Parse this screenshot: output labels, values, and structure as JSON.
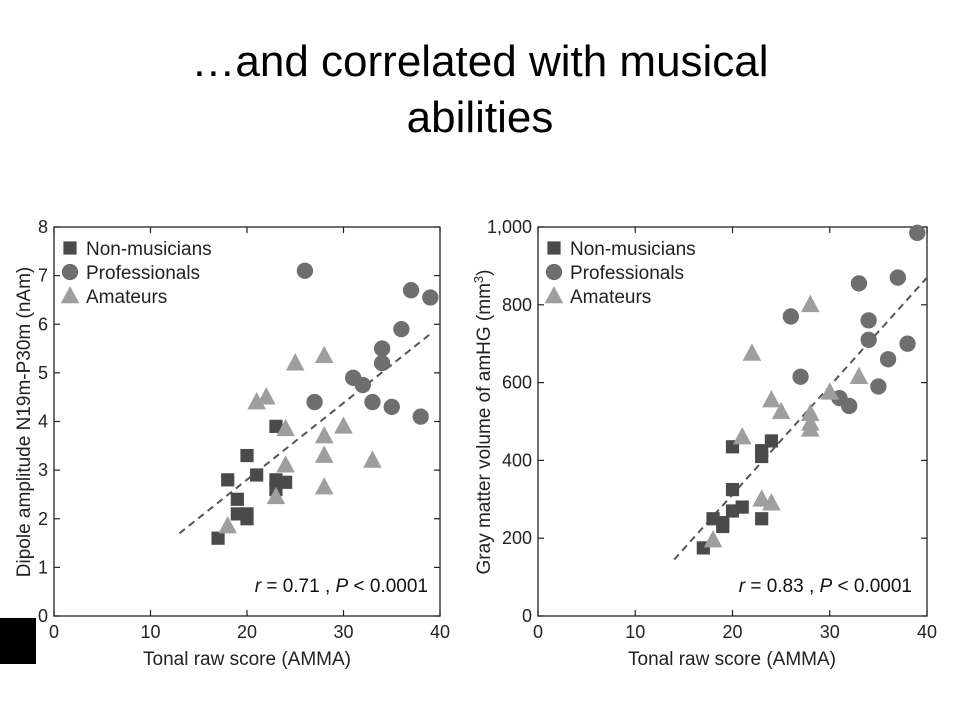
{
  "slide": {
    "title_line1": "…and correlated with musical",
    "title_line2": "abilities"
  },
  "colors": {
    "non_musicians": "#4a4a4a",
    "professionals": "#6e6e6e",
    "amateurs": "#9e9e9e",
    "trend": "#555555"
  },
  "chart_data": [
    {
      "type": "scatter",
      "xlabel": "Tonal raw score (AMMA)",
      "ylabel": "Dipole amplitude  N19m-P30m (nAm)",
      "xlim": [
        0,
        40
      ],
      "ylim": [
        0,
        8
      ],
      "xticks": [
        0,
        10,
        20,
        30,
        40
      ],
      "yticks": [
        0,
        1,
        2,
        3,
        4,
        5,
        6,
        7,
        8
      ],
      "ytick_labels": [
        "0",
        "1",
        "2",
        "3",
        "4",
        "5",
        "6",
        "7",
        "8"
      ],
      "legend_position": "top-left",
      "stat_r": "0.71",
      "stat_p": "0.0001",
      "trend": {
        "x": [
          13,
          39
        ],
        "y": [
          1.7,
          5.8
        ]
      },
      "series": [
        {
          "name": "Non-musicians",
          "marker": "square",
          "points": [
            [
              17,
              1.6
            ],
            [
              18,
              2.8
            ],
            [
              19,
              2.4
            ],
            [
              19,
              2.1
            ],
            [
              20,
              2.0
            ],
            [
              20,
              3.3
            ],
            [
              20,
              2.1
            ],
            [
              21,
              2.9
            ],
            [
              23,
              3.9
            ],
            [
              23,
              2.6
            ],
            [
              23,
              2.8
            ],
            [
              24,
              2.75
            ]
          ]
        },
        {
          "name": "Professionals",
          "marker": "circle",
          "points": [
            [
              26,
              7.1
            ],
            [
              27,
              4.4
            ],
            [
              31,
              4.9
            ],
            [
              32,
              4.75
            ],
            [
              33,
              4.4
            ],
            [
              34,
              5.5
            ],
            [
              34,
              5.2
            ],
            [
              35,
              4.3
            ],
            [
              36,
              5.9
            ],
            [
              37,
              6.7
            ],
            [
              38,
              4.1
            ],
            [
              39,
              6.55
            ]
          ]
        },
        {
          "name": "Amateurs",
          "marker": "triangle",
          "points": [
            [
              18,
              1.85
            ],
            [
              21,
              4.4
            ],
            [
              22,
              4.5
            ],
            [
              23,
              2.45
            ],
            [
              24,
              3.85
            ],
            [
              24,
              3.1
            ],
            [
              25,
              5.2
            ],
            [
              28,
              5.35
            ],
            [
              28,
              3.7
            ],
            [
              28,
              3.3
            ],
            [
              28,
              2.65
            ],
            [
              30,
              3.9
            ],
            [
              33,
              3.2
            ]
          ]
        }
      ]
    },
    {
      "type": "scatter",
      "xlabel": "Tonal raw score (AMMA)",
      "ylabel": "Gray matter volume of amHG (mm",
      "ylabel_sup": "3",
      "ylabel_end": ")",
      "xlim": [
        0,
        40
      ],
      "ylim": [
        0,
        1000
      ],
      "xticks": [
        0,
        10,
        20,
        30,
        40
      ],
      "yticks": [
        0,
        200,
        400,
        600,
        800,
        1000
      ],
      "ytick_labels": [
        "0",
        "200",
        "400",
        "600",
        "800",
        "1,000"
      ],
      "legend_position": "top-left",
      "stat_r": "0.83",
      "stat_p": "0.0001",
      "trend": {
        "x": [
          14,
          40
        ],
        "y": [
          145,
          870
        ]
      },
      "series": [
        {
          "name": "Non-musicians",
          "marker": "square",
          "points": [
            [
              17,
              175
            ],
            [
              18,
              250
            ],
            [
              19,
              240
            ],
            [
              19,
              230
            ],
            [
              20,
              270
            ],
            [
              20,
              325
            ],
            [
              20,
              435
            ],
            [
              21,
              280
            ],
            [
              23,
              250
            ],
            [
              23,
              410
            ],
            [
              23,
              425
            ],
            [
              24,
              450
            ]
          ]
        },
        {
          "name": "Professionals",
          "marker": "circle",
          "points": [
            [
              26,
              770
            ],
            [
              27,
              615
            ],
            [
              31,
              560
            ],
            [
              32,
              540
            ],
            [
              33,
              855
            ],
            [
              34,
              710
            ],
            [
              34,
              760
            ],
            [
              35,
              590
            ],
            [
              36,
              660
            ],
            [
              37,
              870
            ],
            [
              38,
              700
            ],
            [
              39,
              985
            ]
          ]
        },
        {
          "name": "Amateurs",
          "marker": "triangle",
          "points": [
            [
              18,
              195
            ],
            [
              21,
              460
            ],
            [
              22,
              675
            ],
            [
              23,
              300
            ],
            [
              24,
              555
            ],
            [
              24,
              290
            ],
            [
              25,
              525
            ],
            [
              28,
              800
            ],
            [
              28,
              520
            ],
            [
              28,
              480
            ],
            [
              28,
              495
            ],
            [
              30,
              575
            ],
            [
              33,
              615
            ]
          ]
        }
      ]
    }
  ]
}
